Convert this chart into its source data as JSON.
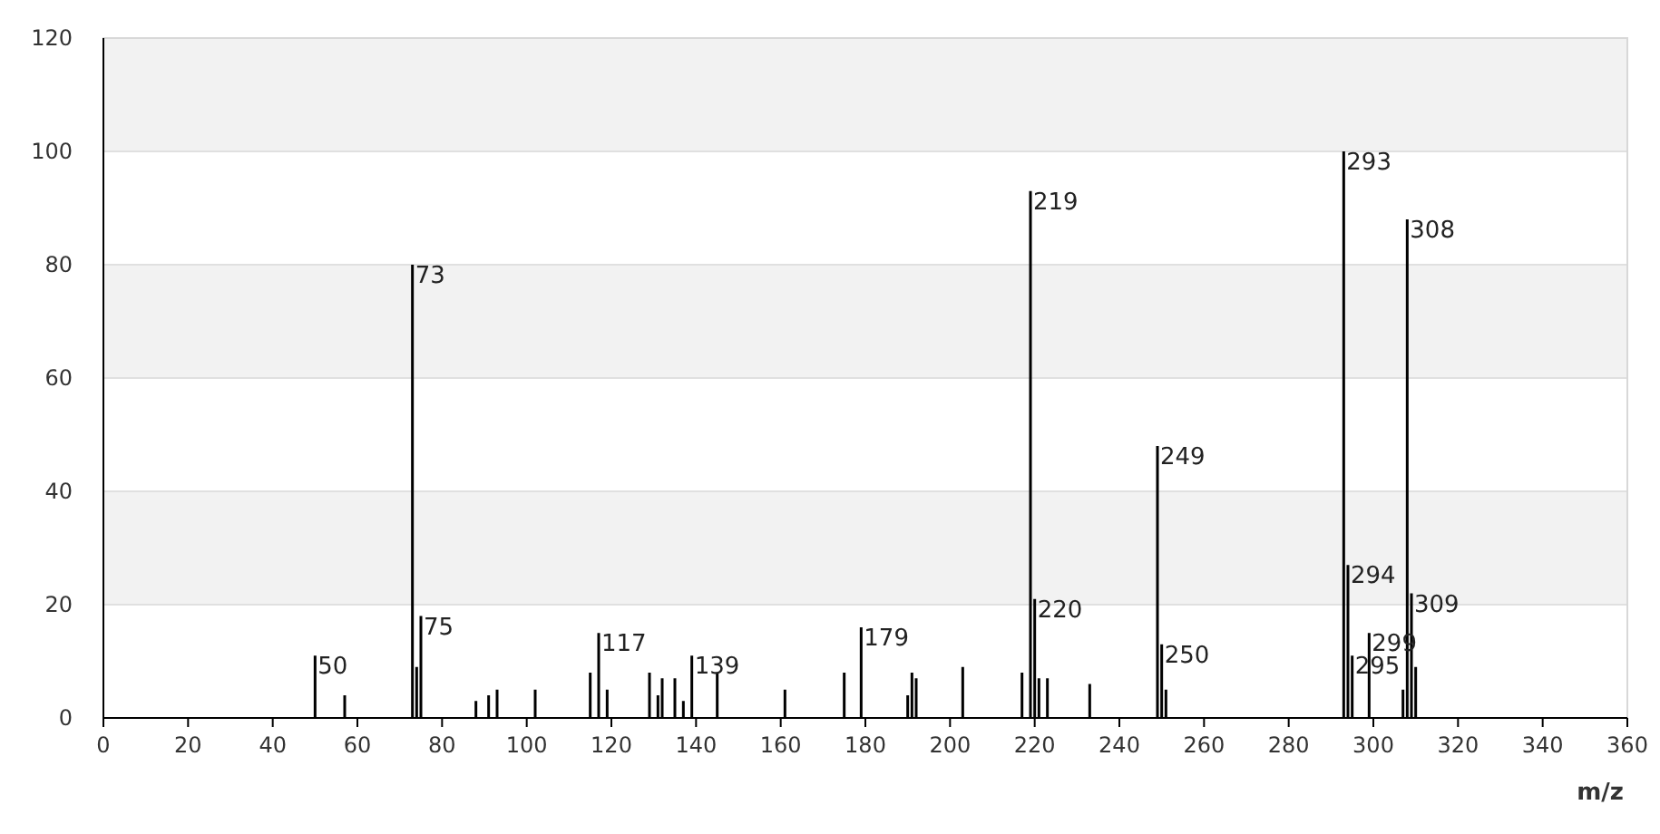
{
  "chart_data": {
    "type": "bar",
    "xlabel": "m/z",
    "x": [
      50,
      57,
      73,
      74,
      75,
      88,
      91,
      93,
      102,
      115,
      117,
      119,
      129,
      131,
      132,
      135,
      137,
      139,
      145,
      161,
      175,
      179,
      190,
      191,
      192,
      203,
      217,
      219,
      220,
      221,
      223,
      233,
      249,
      250,
      251,
      293,
      294,
      295,
      299,
      307,
      308,
      309,
      310
    ],
    "values": [
      11,
      4,
      80,
      9,
      18,
      3,
      4,
      5,
      5,
      8,
      15,
      5,
      8,
      4,
      7,
      7,
      3,
      11,
      8,
      5,
      8,
      16,
      4,
      8,
      7,
      9,
      8,
      93,
      21,
      7,
      7,
      6,
      48,
      13,
      5,
      100,
      27,
      11,
      15,
      5,
      88,
      22,
      9
    ],
    "annotations": [
      {
        "text": "50",
        "x": 50,
        "y": 11
      },
      {
        "text": "73",
        "x": 73,
        "y": 80
      },
      {
        "text": "75",
        "x": 75,
        "y": 18
      },
      {
        "text": "117",
        "x": 117,
        "y": 15
      },
      {
        "text": "139",
        "x": 139,
        "y": 11
      },
      {
        "text": "179",
        "x": 179,
        "y": 16
      },
      {
        "text": "219",
        "x": 219,
        "y": 93
      },
      {
        "text": "220",
        "x": 220,
        "y": 21
      },
      {
        "text": "249",
        "x": 249,
        "y": 48
      },
      {
        "text": "250",
        "x": 250,
        "y": 13
      },
      {
        "text": "293",
        "x": 293,
        "y": 100
      },
      {
        "text": "294",
        "x": 294,
        "y": 27
      },
      {
        "text": "295",
        "x": 295,
        "y": 11
      },
      {
        "text": "299",
        "x": 299,
        "y": 15
      },
      {
        "text": "308",
        "x": 308,
        "y": 88
      },
      {
        "text": "309",
        "x": 309,
        "y": 22
      }
    ],
    "color": "#000000",
    "xlim": [
      0,
      360
    ],
    "xticks": [
      0,
      20,
      40,
      60,
      80,
      100,
      120,
      140,
      160,
      180,
      200,
      220,
      240,
      260,
      280,
      300,
      320,
      340,
      360
    ],
    "ylim": [
      0,
      120
    ],
    "yticks": [
      0,
      20,
      40,
      60,
      80,
      100,
      120
    ],
    "grid": "y"
  }
}
